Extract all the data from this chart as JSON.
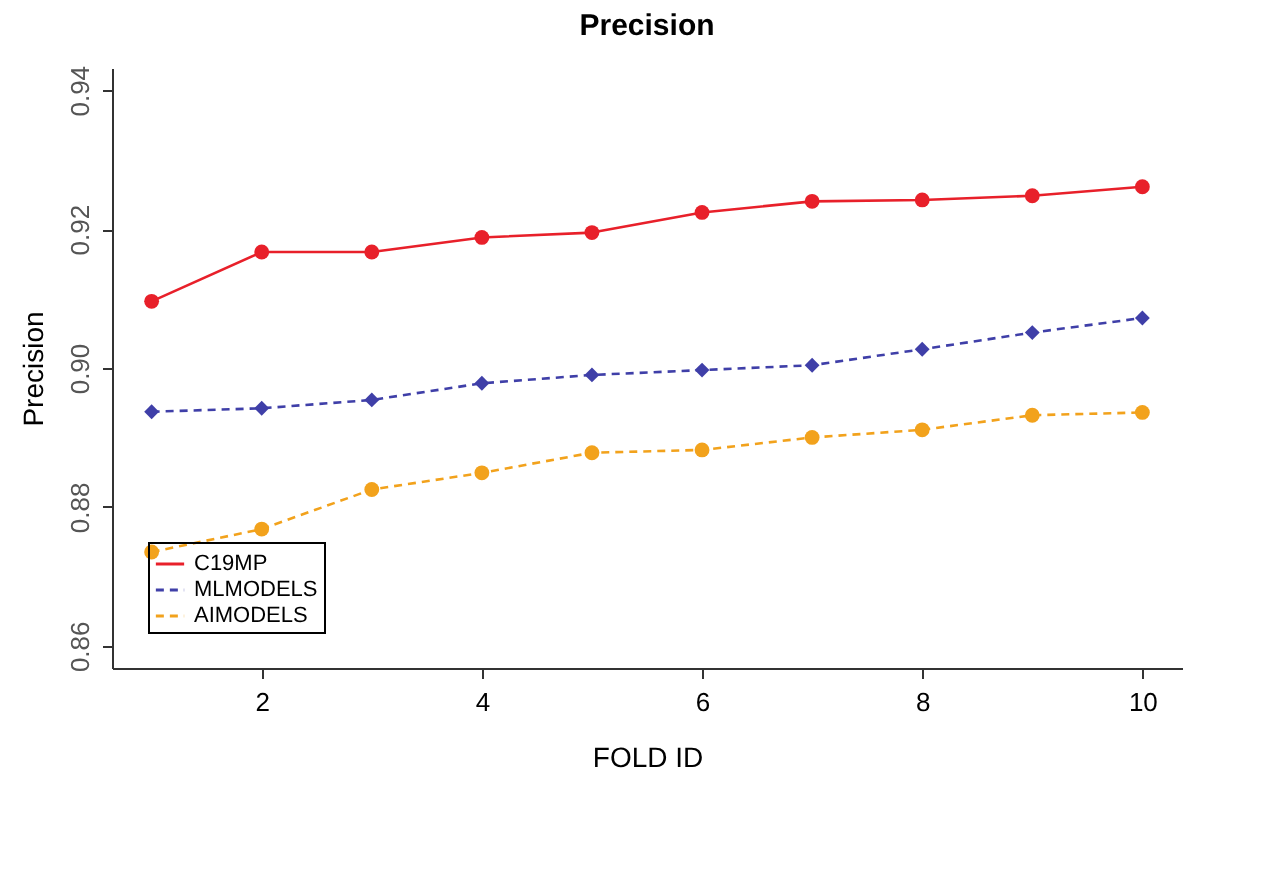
{
  "chart_data": {
    "type": "line",
    "title": "Precision",
    "xlabel": "FOLD ID",
    "ylabel": "Precision",
    "x": [
      1,
      2,
      3,
      4,
      5,
      6,
      7,
      8,
      9,
      10
    ],
    "series": [
      {
        "name": "C19MP",
        "color": "#e8202a",
        "marker": "circle",
        "line_style": "solid",
        "values": [
          0.9096,
          0.9167,
          0.9167,
          0.9188,
          0.9195,
          0.9224,
          0.924,
          0.9242,
          0.9248,
          0.9261
        ]
      },
      {
        "name": "MLMODELS",
        "color": "#3f3fa8",
        "marker": "diamond",
        "line_style": "dashed",
        "values": [
          0.8937,
          0.8942,
          0.8954,
          0.8978,
          0.899,
          0.8997,
          0.9004,
          0.9027,
          0.9051,
          0.9072
        ]
      },
      {
        "name": "AIMODELS",
        "color": "#f2a21c",
        "marker": "circle",
        "line_style": "dashed",
        "values": [
          0.8735,
          0.8768,
          0.8825,
          0.8849,
          0.8878,
          0.8882,
          0.89,
          0.8911,
          0.8932,
          0.8936
        ]
      }
    ],
    "xlim": [
      0.64,
      10.36
    ],
    "xticks": [
      2,
      4,
      6,
      8,
      10
    ],
    "ylim": [
      0.8568,
      0.9432
    ],
    "yticks": [
      0.86,
      0.88,
      {
        "value": 0.9,
        "label": "0.90"
      },
      0.92,
      0.94
    ],
    "grid": false,
    "legend": "bottom left"
  }
}
